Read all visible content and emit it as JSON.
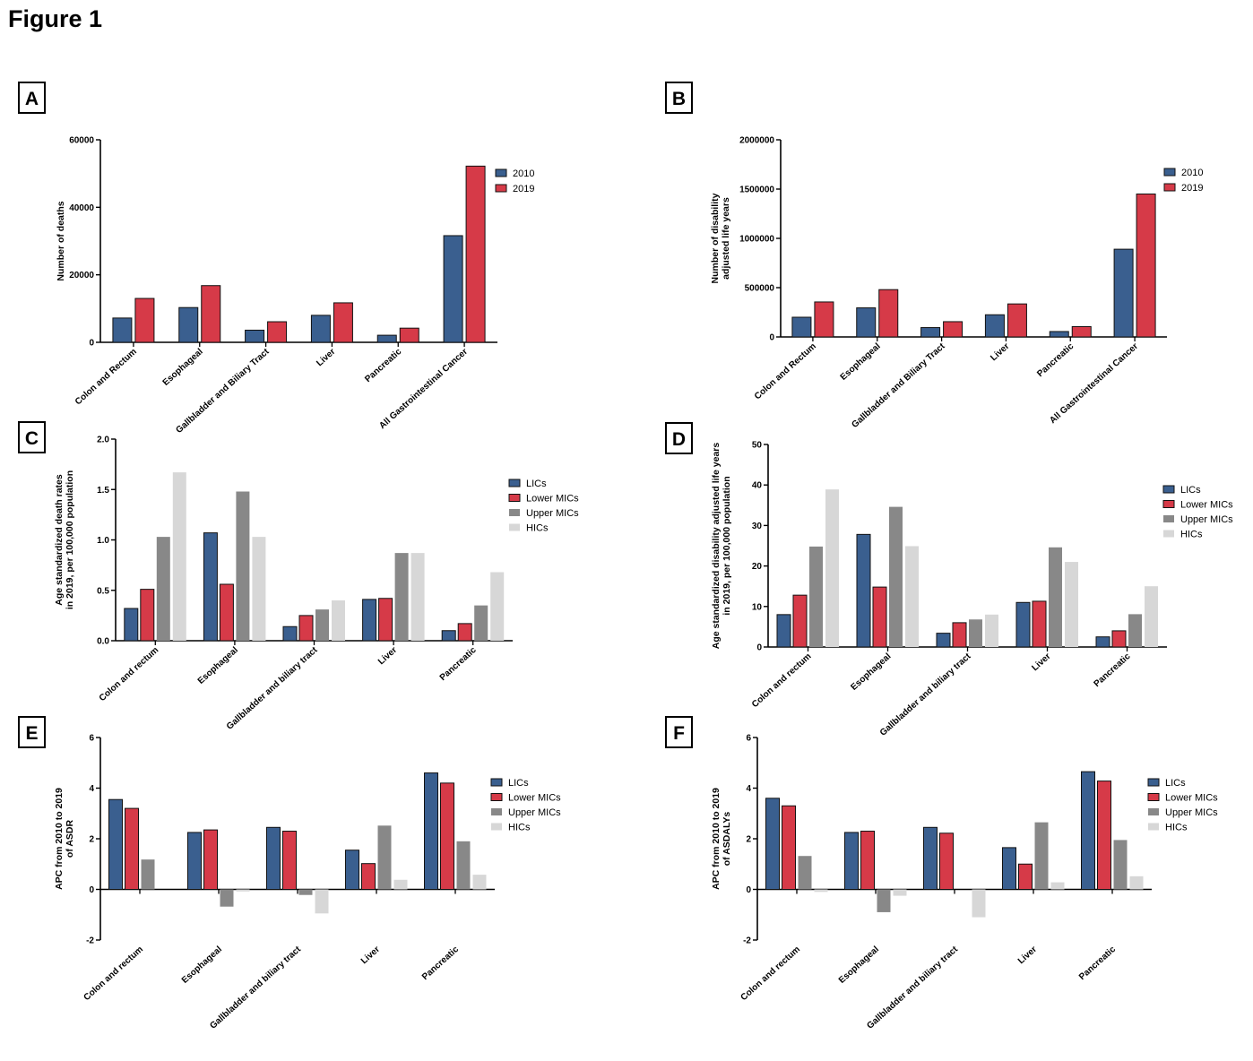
{
  "figure_title": "Figure 1",
  "colors": {
    "c2010": "#3a5f8f",
    "c2019": "#d63a48",
    "LICs": "#3a5f8f",
    "LowerMICs": "#d63a48",
    "UpperMICs": "#888888",
    "HICs": "#d7d7d7"
  },
  "chart_data": [
    {
      "panel": "A",
      "type": "bar",
      "ylabel": [
        "Number of deaths"
      ],
      "categories": [
        "Colon and Rectum",
        "Esophageal",
        "Gallbladder and Biliary Tract",
        "Liver",
        "Pancreatic",
        "All Gastrointestinal Cancer"
      ],
      "ylim": [
        0,
        60000
      ],
      "yticks": [
        0,
        20000,
        40000,
        60000
      ],
      "ytick_labels": [
        "0",
        "20000",
        "40000",
        "60000"
      ],
      "legend_position": "top-right",
      "series": [
        {
          "name": "2010",
          "color_key": "c2010",
          "values": [
            7200,
            10300,
            3600,
            8000,
            2100,
            31600
          ]
        },
        {
          "name": "2019",
          "color_key": "c2019",
          "values": [
            13000,
            16800,
            6100,
            11700,
            4200,
            52200
          ]
        }
      ]
    },
    {
      "panel": "B",
      "type": "bar",
      "ylabel": [
        "Number of disability",
        "adjusted life years"
      ],
      "categories": [
        "Colon and Rectum",
        "Esophageal",
        "Gallbladder and Biliary Tract",
        "Liver",
        "Pancreatic",
        "All Gastrointestinal Cancer"
      ],
      "ylim": [
        0,
        2000000
      ],
      "yticks": [
        0,
        500000,
        1000000,
        1500000,
        2000000
      ],
      "ytick_labels": [
        "0",
        "500000",
        "1000000",
        "1500000",
        "2000000"
      ],
      "legend_position": "top-right",
      "series": [
        {
          "name": "2010",
          "color_key": "c2010",
          "values": [
            200000,
            295000,
            95000,
            225000,
            55000,
            890000
          ]
        },
        {
          "name": "2019",
          "color_key": "c2019",
          "values": [
            355000,
            480000,
            155000,
            335000,
            105000,
            1450000
          ]
        }
      ]
    },
    {
      "panel": "C",
      "type": "bar",
      "ylabel": [
        "Age standardized death rates",
        "in 2019, per 100,000 population"
      ],
      "categories": [
        "Colon and rectum",
        "Esophageal",
        "Gallbladder and biliary tract",
        "Liver",
        "Pancreatic"
      ],
      "ylim": [
        0,
        2.0
      ],
      "yticks": [
        0,
        0.5,
        1.0,
        1.5,
        2.0
      ],
      "ytick_labels": [
        "0.0",
        "0.5",
        "1.0",
        "1.5",
        "2.0"
      ],
      "legend_position": "right",
      "series": [
        {
          "name": "LICs",
          "color_key": "LICs",
          "values": [
            0.32,
            1.07,
            0.14,
            0.41,
            0.1
          ]
        },
        {
          "name": "Lower MICs",
          "color_key": "LowerMICs",
          "values": [
            0.51,
            0.56,
            0.25,
            0.42,
            0.17
          ]
        },
        {
          "name": "Upper MICs",
          "color_key": "UpperMICs",
          "values": [
            1.03,
            1.48,
            0.31,
            0.87,
            0.35
          ]
        },
        {
          "name": "HICs",
          "color_key": "HICs",
          "values": [
            1.67,
            1.03,
            0.4,
            0.87,
            0.68
          ]
        }
      ]
    },
    {
      "panel": "D",
      "type": "bar",
      "ylabel": [
        "Age standardized disability adjusted life years",
        "in 2019, per 100,000 population"
      ],
      "categories": [
        "Colon and rectum",
        "Esophageal",
        "Gallbladder and biliary tract",
        "Liver",
        "Pancreatic"
      ],
      "ylim": [
        0,
        50
      ],
      "yticks": [
        0,
        10,
        20,
        30,
        40,
        50
      ],
      "ytick_labels": [
        "0",
        "10",
        "20",
        "30",
        "40",
        "50"
      ],
      "legend_position": "right",
      "series": [
        {
          "name": "LICs",
          "color_key": "LICs",
          "values": [
            8,
            27.8,
            3.4,
            11,
            2.5
          ]
        },
        {
          "name": "Lower MICs",
          "color_key": "LowerMICs",
          "values": [
            12.8,
            14.8,
            6,
            11.3,
            4
          ]
        },
        {
          "name": "Upper MICs",
          "color_key": "UpperMICs",
          "values": [
            24.8,
            34.6,
            6.8,
            24.6,
            8.1
          ]
        },
        {
          "name": "HICs",
          "color_key": "HICs",
          "values": [
            38.9,
            24.9,
            8,
            21,
            15
          ]
        }
      ]
    },
    {
      "panel": "E",
      "type": "bar",
      "ylabel": [
        "APC from 2010 to 2019",
        "of ASDR"
      ],
      "categories": [
        "Colon and rectum",
        "Esophageal",
        "Gallbladder and biliary tract",
        "Liver",
        "Pancreatic"
      ],
      "ylim": [
        -2,
        6
      ],
      "yticks": [
        -2,
        0,
        2,
        4,
        6
      ],
      "ytick_labels": [
        "-2",
        "0",
        "2",
        "4",
        "6"
      ],
      "legend_position": "right",
      "series": [
        {
          "name": "LICs",
          "color_key": "LICs",
          "values": [
            3.55,
            2.25,
            2.45,
            1.55,
            4.6
          ]
        },
        {
          "name": "Lower MICs",
          "color_key": "LowerMICs",
          "values": [
            3.2,
            2.35,
            2.3,
            1.02,
            4.2
          ]
        },
        {
          "name": "Upper MICs",
          "color_key": "UpperMICs",
          "values": [
            1.18,
            -0.68,
            -0.22,
            2.52,
            1.9
          ]
        },
        {
          "name": "HICs",
          "color_key": "HICs",
          "values": [
            0.0,
            -0.08,
            -0.95,
            0.38,
            0.58
          ]
        }
      ]
    },
    {
      "panel": "F",
      "type": "bar",
      "ylabel": [
        "APC from 2010 to 2019",
        "of ASDALYs"
      ],
      "categories": [
        "Colon and rectum",
        "Esophageal",
        "Gallbladder and biliary tract",
        "Liver",
        "Pancreatic"
      ],
      "ylim": [
        -2,
        6
      ],
      "yticks": [
        -2,
        0,
        2,
        4,
        6
      ],
      "ytick_labels": [
        "-2",
        "0",
        "2",
        "4",
        "6"
      ],
      "legend_position": "right",
      "series": [
        {
          "name": "LICs",
          "color_key": "LICs",
          "values": [
            3.6,
            2.25,
            2.45,
            1.65,
            4.65
          ]
        },
        {
          "name": "Lower MICs",
          "color_key": "LowerMICs",
          "values": [
            3.3,
            2.3,
            2.22,
            1.0,
            4.28
          ]
        },
        {
          "name": "Upper MICs",
          "color_key": "UpperMICs",
          "values": [
            1.32,
            -0.9,
            0.0,
            2.65,
            1.95
          ]
        },
        {
          "name": "HICs",
          "color_key": "HICs",
          "values": [
            -0.1,
            -0.25,
            -1.1,
            0.28,
            0.52
          ]
        }
      ]
    }
  ]
}
